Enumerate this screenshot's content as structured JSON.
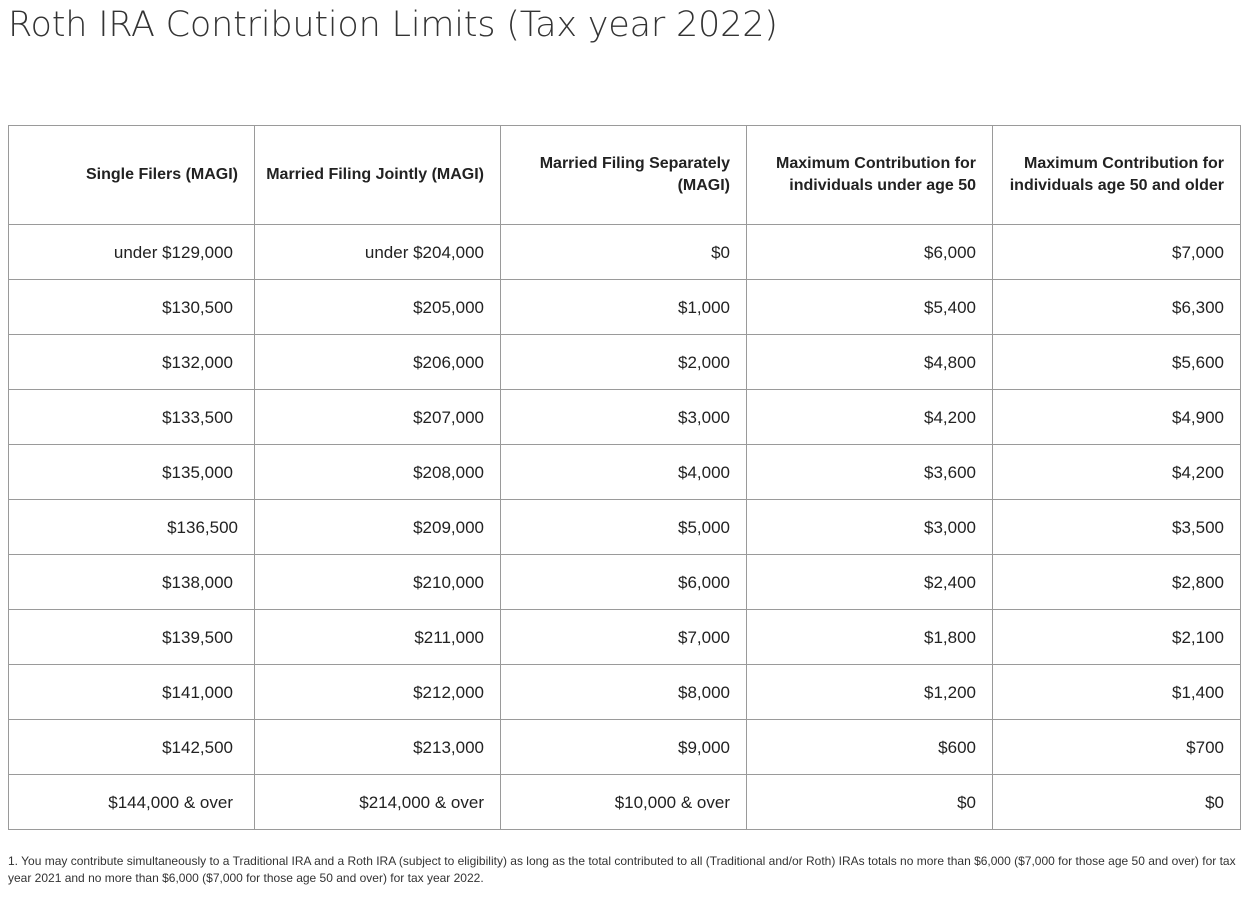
{
  "title": "Roth IRA Contribution Limits (Tax year 2022)",
  "table": {
    "headers": [
      "Single Filers (MAGI)",
      "Married Filing Jointly (MAGI)",
      "Married Filing Separately (MAGI)",
      "Maximum Contribution for individuals under age 50",
      "Maximum Contribution for individuals age 50 and older"
    ],
    "rows": [
      [
        "under $129,000",
        "under $204,000",
        "$0",
        "$6,000",
        "$7,000"
      ],
      [
        "$130,500",
        "$205,000",
        "$1,000",
        "$5,400",
        "$6,300"
      ],
      [
        "$132,000",
        "$206,000",
        "$2,000",
        "$4,800",
        "$5,600"
      ],
      [
        "$133,500",
        "$207,000",
        "$3,000",
        "$4,200",
        "$4,900"
      ],
      [
        "$135,000",
        "$208,000",
        "$4,000",
        "$3,600",
        "$4,200"
      ],
      [
        "$136,500",
        "$209,000",
        "$5,000",
        "$3,000",
        "$3,500"
      ],
      [
        "$138,000",
        "$210,000",
        "$6,000",
        "$2,400",
        "$2,800"
      ],
      [
        "$139,500",
        "$211,000",
        "$7,000",
        "$1,800",
        "$2,100"
      ],
      [
        "$141,000",
        "$212,000",
        "$8,000",
        "$1,200",
        "$1,400"
      ],
      [
        "$142,500",
        "$213,000",
        "$9,000",
        "$600",
        "$700"
      ],
      [
        "$144,000 & over",
        "$214,000 & over",
        "$10,000 & over",
        "$0",
        "$0"
      ]
    ]
  },
  "footnote": "1. You may contribute simultaneously to a Traditional IRA and a Roth IRA (subject to eligibility) as long as the total contributed to all (Traditional and/or Roth) IRAs totals no more than $6,000 ($7,000 for those age 50 and over) for tax year 2021 and no more than $6,000 ($7,000 for those age 50 and over) for tax year 2022."
}
